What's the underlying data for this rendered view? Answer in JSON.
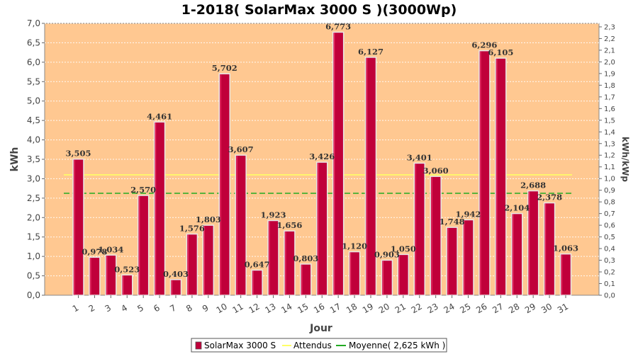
{
  "chart_data": {
    "type": "bar",
    "title": "1-2018( SolarMax 3000 S )(3000Wp)",
    "xlabel": "Jour",
    "ylabel": "kWh",
    "ylabel_right": "kWh/kWp",
    "ylim": [
      0,
      7.0
    ],
    "yticks": [
      "0,0",
      "0,5",
      "1,0",
      "1,5",
      "2,0",
      "2,5",
      "3,0",
      "3,5",
      "4,0",
      "4,5",
      "5,0",
      "5,5",
      "6,0",
      "6,5",
      "7,0"
    ],
    "ylim_right": [
      0,
      2.33
    ],
    "yticks_right": [
      "0,0",
      "0,1",
      "0,2",
      "0,3",
      "0,4",
      "0,5",
      "0,6",
      "0,7",
      "0,8",
      "0,9",
      "1,0",
      "1,1",
      "1,2",
      "1,3",
      "1,4",
      "1,5",
      "1,6",
      "1,7",
      "1,8",
      "1,9",
      "2,0",
      "2,1",
      "2,2",
      "2,3"
    ],
    "categories": [
      "1",
      "2",
      "3",
      "4",
      "5",
      "6",
      "7",
      "8",
      "9",
      "10",
      "11",
      "12",
      "13",
      "14",
      "15",
      "16",
      "17",
      "18",
      "19",
      "20",
      "21",
      "22",
      "23",
      "24",
      "25",
      "26",
      "27",
      "28",
      "29",
      "30",
      "31"
    ],
    "series": [
      {
        "name": "SolarMax 3000 S",
        "color": "#c0003a",
        "values": [
          3.505,
          0.978,
          1.034,
          0.523,
          2.57,
          4.461,
          0.403,
          1.576,
          1.803,
          5.702,
          3.607,
          0.647,
          1.923,
          1.656,
          0.803,
          3.426,
          6.773,
          1.12,
          6.127,
          0.903,
          1.05,
          3.401,
          3.06,
          1.748,
          1.942,
          6.296,
          6.105,
          2.104,
          2.688,
          2.378,
          1.063
        ],
        "labels": [
          "3,505",
          "0,978",
          "1,034",
          "0,523",
          "2,570",
          "4,461",
          "0,403",
          "1,576",
          "1,803",
          "5,702",
          "3,607",
          "0,647",
          "1,923",
          "1,656",
          "0,803",
          "3,426",
          "6,773",
          "1,120",
          "6,127",
          "0,903",
          "1,050",
          "3,401",
          "3,060",
          "1,748",
          "1,942",
          "6,296",
          "6,105",
          "2,104",
          "2,688",
          "2,378",
          "1,063"
        ]
      }
    ],
    "reference_lines": [
      {
        "name": "Attendus",
        "value": 3.1,
        "color": "#ffff66",
        "style": "solid"
      },
      {
        "name": "Moyenne( 2,625 kWh )",
        "value": 2.625,
        "color": "#22aa22",
        "style": "dashed"
      }
    ],
    "plot_background": "#ffc891",
    "grid": true,
    "legend": {
      "position": "bottom",
      "entries": [
        "SolarMax 3000 S",
        "Attendus",
        "Moyenne( 2,625 kWh )"
      ]
    }
  }
}
